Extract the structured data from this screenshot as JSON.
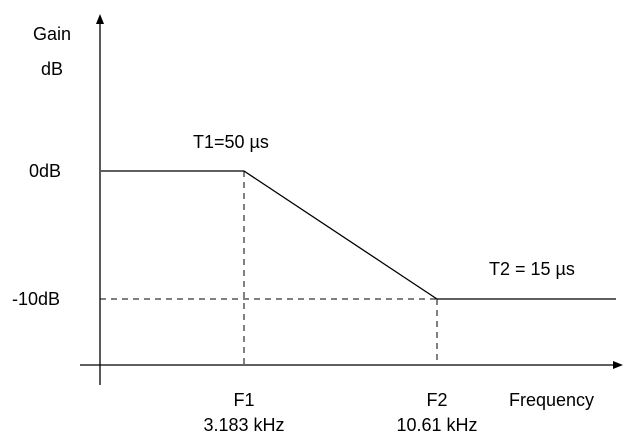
{
  "chart_data": {
    "type": "line",
    "title": "",
    "ylabel_line1": "Gain",
    "ylabel_line2": "dB",
    "xlabel": "Frequency",
    "y_ticks": [
      "0dB",
      "-10dB"
    ],
    "x_markers": [
      {
        "name": "F1",
        "value_label": "3.183 kHz"
      },
      {
        "name": "F2",
        "value_label": "10.61 kHz"
      }
    ],
    "annotations": {
      "t1": "T1=50 µs",
      "t2": "T2 = 15 µs"
    },
    "series": [
      {
        "points": [
          {
            "x": "start",
            "y": 0
          },
          {
            "x": "F1",
            "y": 0
          },
          {
            "x": "F2",
            "y": -10
          },
          {
            "x": "end",
            "y": -10
          }
        ]
      }
    ],
    "line_color": "#000000"
  }
}
